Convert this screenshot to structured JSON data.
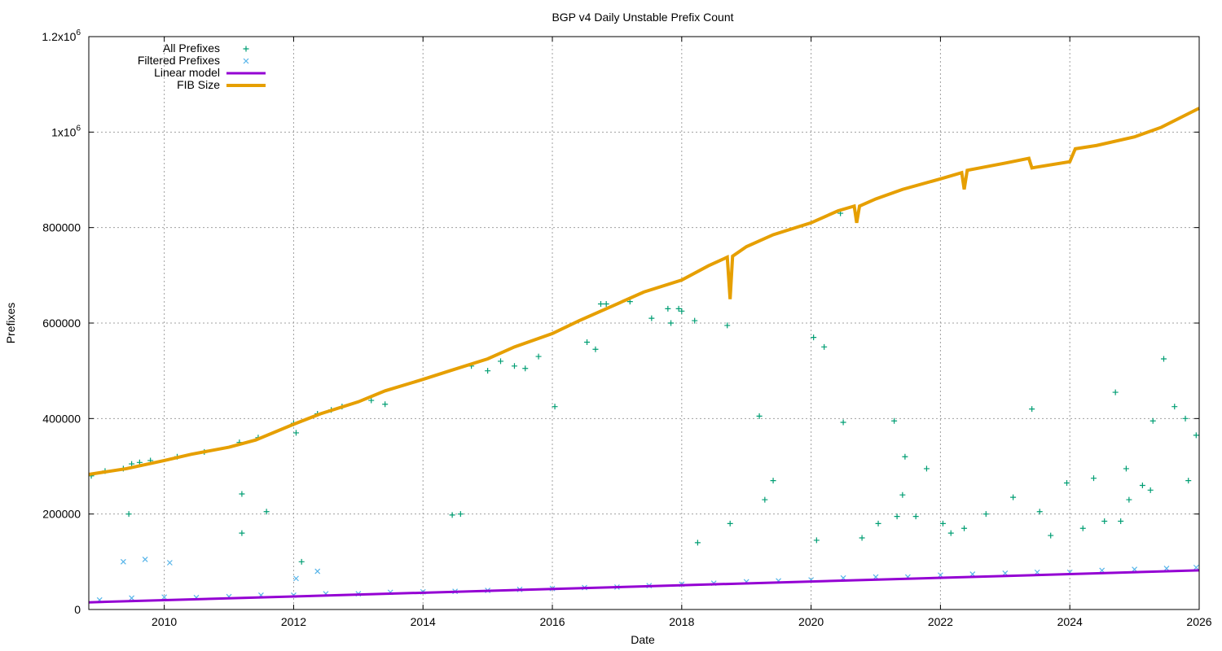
{
  "chart_data": {
    "type": "scatter",
    "title": "BGP v4 Daily Unstable Prefix Count",
    "xlabel": "Date",
    "ylabel": "Prefixes",
    "xlim": [
      "2008-11-01",
      "2026-01-01"
    ],
    "ylim": [
      0,
      1200000
    ],
    "grid": true,
    "legend_position": "top-left",
    "x_ticks": [
      "2010",
      "2012",
      "2014",
      "2016",
      "2018",
      "2020",
      "2022",
      "2024",
      "2026"
    ],
    "y_ticks": [
      {
        "value": 0,
        "label": "0"
      },
      {
        "value": 200000,
        "label": "200000"
      },
      {
        "value": 400000,
        "label": "400000"
      },
      {
        "value": 600000,
        "label": "600000"
      },
      {
        "value": 800000,
        "label": "800000"
      },
      {
        "value": 1000000,
        "label": "1x10",
        "sup": "6"
      },
      {
        "value": 1200000,
        "label": "1.2x10",
        "sup": "6"
      }
    ],
    "series": [
      {
        "name": "All Prefixes",
        "marker": "+",
        "color": "#009e73",
        "x": [
          "2008-11-15",
          "2009-02-01",
          "2009-05-15",
          "2009-07-01",
          "2009-08-15",
          "2009-10-15",
          "2010-03-15",
          "2010-08-15",
          "2011-03-01",
          "2011-03-15",
          "2011-06-15",
          "2011-08-01",
          "2012-01-01",
          "2012-01-15",
          "2012-05-15",
          "2012-08-01",
          "2012-10-01",
          "2013-03-15",
          "2013-06-01",
          "2014-06-15",
          "2014-10-01",
          "2015-01-01",
          "2015-03-15",
          "2015-06-01",
          "2015-08-01",
          "2015-10-15",
          "2016-01-15",
          "2016-07-15",
          "2016-10-01",
          "2017-03-15",
          "2017-07-15",
          "2017-10-15",
          "2017-11-01",
          "2018-01-01",
          "2018-03-15",
          "2018-09-15",
          "2019-03-15",
          "2019-06-01",
          "2020-01-15",
          "2020-03-15",
          "2020-07-01",
          "2020-10-15",
          "2021-01-15",
          "2021-04-15",
          "2021-06-15",
          "2021-08-15",
          "2021-10-15",
          "2022-01-15",
          "2022-05-15",
          "2022-09-15",
          "2023-02-15",
          "2023-06-01",
          "2023-09-15",
          "2023-12-15",
          "2024-03-15",
          "2024-05-15",
          "2024-07-15",
          "2024-09-15",
          "2024-11-15",
          "2025-02-15",
          "2025-04-15",
          "2025-06-15",
          "2025-08-15",
          "2025-10-15",
          "2025-12-15",
          "2009-06-15",
          "2011-03-15",
          "2014-08-01",
          "2016-11-01",
          "2017-12-15",
          "2018-10-01",
          "2019-04-15",
          "2020-06-15",
          "2021-06-01",
          "2022-03-01",
          "2023-07-15",
          "2024-10-15",
          "2025-04-01",
          "2025-11-01",
          "2012-02-15",
          "2016-09-01",
          "2018-04-01",
          "2020-02-01",
          "2021-05-01",
          "2024-12-01"
        ],
        "y": [
          280000,
          290000,
          295000,
          305000,
          308000,
          312000,
          320000,
          330000,
          350000,
          242000,
          360000,
          205000,
          390000,
          370000,
          410000,
          418000,
          425000,
          438000,
          430000,
          198000,
          510000,
          500000,
          520000,
          510000,
          505000,
          530000,
          425000,
          560000,
          640000,
          645000,
          610000,
          630000,
          600000,
          625000,
          605000,
          595000,
          405000,
          270000,
          570000,
          550000,
          392000,
          150000,
          180000,
          395000,
          320000,
          195000,
          295000,
          180000,
          170000,
          200000,
          235000,
          420000,
          155000,
          265000,
          170000,
          275000,
          185000,
          455000,
          295000,
          260000,
          395000,
          525000,
          425000,
          400000,
          365000,
          200000,
          160000,
          200000,
          640000,
          630000,
          180000,
          230000,
          830000,
          240000,
          160000,
          205000,
          185000,
          250000,
          270000,
          100000,
          545000,
          140000,
          145000,
          195000,
          230000
        ]
      },
      {
        "name": "Filtered Prefixes",
        "marker": "x",
        "color": "#56b4e9",
        "x": [
          "2009-01-01",
          "2009-07-01",
          "2010-01-01",
          "2010-07-01",
          "2011-01-01",
          "2011-07-01",
          "2012-01-01",
          "2012-07-01",
          "2013-01-01",
          "2013-07-01",
          "2014-01-01",
          "2014-07-01",
          "2015-01-01",
          "2015-07-01",
          "2016-01-01",
          "2016-07-01",
          "2017-01-01",
          "2017-07-01",
          "2018-01-01",
          "2018-07-01",
          "2019-01-01",
          "2019-07-01",
          "2020-01-01",
          "2020-07-01",
          "2021-01-01",
          "2021-07-01",
          "2022-01-01",
          "2022-07-01",
          "2023-01-01",
          "2023-07-01",
          "2024-01-01",
          "2024-07-01",
          "2025-01-01",
          "2025-07-01",
          "2025-12-15",
          "2009-05-15",
          "2009-09-15",
          "2010-02-01",
          "2012-01-15",
          "2012-05-15"
        ],
        "y": [
          20000,
          24000,
          26000,
          25000,
          27000,
          30000,
          30000,
          33000,
          33000,
          36000,
          37000,
          38000,
          40000,
          42000,
          44000,
          46000,
          47000,
          50000,
          53000,
          55000,
          58000,
          60000,
          62000,
          66000,
          68000,
          68000,
          72000,
          74000,
          76000,
          78000,
          78000,
          82000,
          84000,
          86000,
          88000,
          100000,
          105000,
          98000,
          65000,
          80000
        ]
      }
    ],
    "linear_model": {
      "name": "Linear model",
      "color": "#9400d3",
      "x": [
        "2008-11-01",
        "2026-01-01"
      ],
      "y": [
        15000,
        82000
      ]
    },
    "fib_size": {
      "name": "FIB Size",
      "color": "#e69f00",
      "x": [
        "2008-11-01",
        "2009-06-01",
        "2010-01-01",
        "2010-06-01",
        "2011-01-01",
        "2011-06-01",
        "2012-01-01",
        "2012-06-01",
        "2013-01-01",
        "2013-06-01",
        "2014-01-01",
        "2014-06-01",
        "2015-01-01",
        "2015-06-01",
        "2016-01-01",
        "2016-06-01",
        "2017-01-01",
        "2017-06-01",
        "2018-01-01",
        "2018-06-01",
        "2018-09-15",
        "2018-10-01",
        "2018-10-15",
        "2019-01-01",
        "2019-06-01",
        "2020-01-01",
        "2020-06-01",
        "2020-09-01",
        "2020-09-15",
        "2020-10-01",
        "2021-01-01",
        "2021-06-01",
        "2022-01-01",
        "2022-05-01",
        "2022-05-15",
        "2022-06-01",
        "2023-01-01",
        "2023-05-15",
        "2023-06-01",
        "2024-01-01",
        "2024-02-01",
        "2024-06-01",
        "2025-01-01",
        "2025-06-01",
        "2026-01-01"
      ],
      "y": [
        283000,
        295000,
        312000,
        325000,
        340000,
        355000,
        388000,
        410000,
        435000,
        458000,
        482000,
        500000,
        525000,
        550000,
        578000,
        605000,
        640000,
        665000,
        690000,
        720000,
        738000,
        650000,
        740000,
        760000,
        785000,
        810000,
        835000,
        845000,
        810000,
        845000,
        860000,
        880000,
        902000,
        915000,
        880000,
        920000,
        935000,
        945000,
        925000,
        938000,
        965000,
        972000,
        990000,
        1010000,
        1050000
      ]
    }
  }
}
